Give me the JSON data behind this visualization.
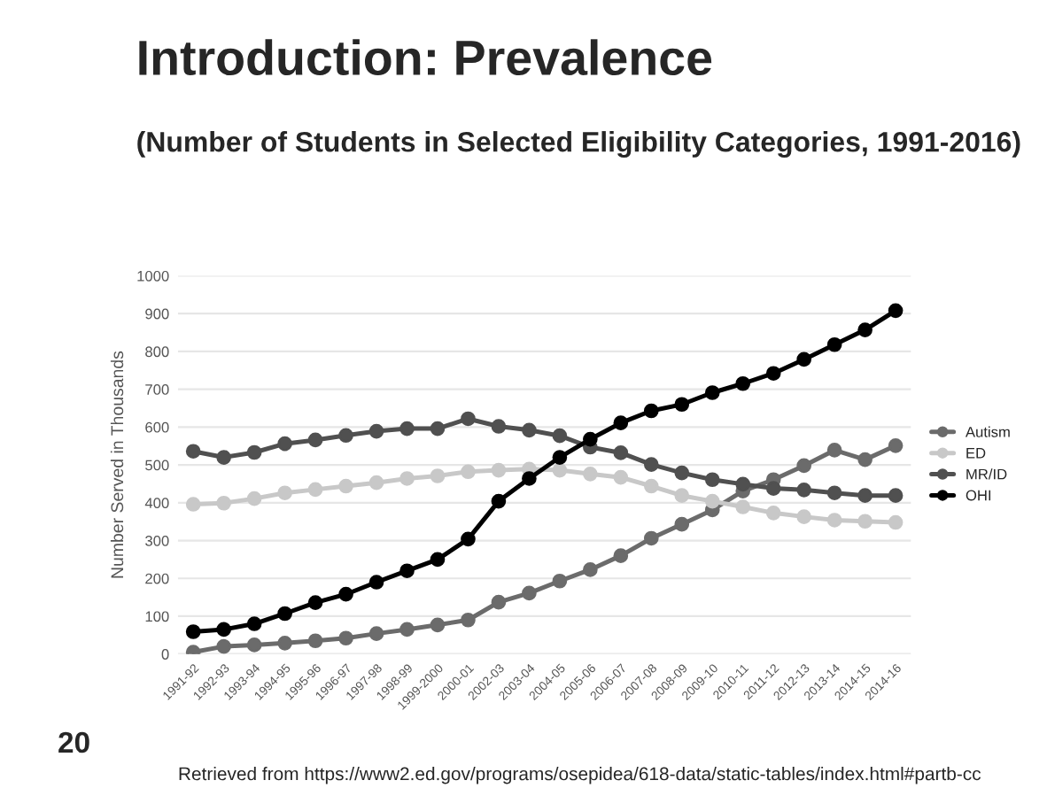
{
  "chart_data": {
    "type": "line",
    "title": "Introduction: Prevalence",
    "subtitle": "(Number of Students in Selected Eligibility Categories, 1991-2016)",
    "ylabel": "Number Served in Thousands",
    "annotations": [
      "20",
      "Retrieved from https://www2.ed.gov/programs/osepidea/618-data/static-tables/index.html#partb-cc"
    ],
    "categories": [
      "1991-92",
      "1992-93",
      "1993-94",
      "1994-95",
      "1995-96",
      "1996-97",
      "1997-98",
      "1998-99",
      "1999-2000",
      "2000-01",
      "2002-03",
      "2003-04",
      "2004-05",
      "2005-06",
      "2006-07",
      "2007-08",
      "2008-09",
      "2009-10",
      "2010-11",
      "2011-12",
      "2012-13",
      "2013-14",
      "2014-15",
      "2014-16"
    ],
    "series": [
      {
        "name": "Autism",
        "color": "#6b6b6b",
        "values": [
          5,
          20,
          24,
          29,
          35,
          42,
          54,
          65,
          77,
          90,
          137,
          161,
          193,
          223,
          260,
          306,
          343,
          381,
          431,
          461,
          498,
          539,
          514,
          551
        ]
      },
      {
        "name": "ED",
        "color": "#c8c8c8",
        "values": [
          396,
          399,
          411,
          426,
          435,
          444,
          453,
          464,
          471,
          482,
          486,
          489,
          486,
          476,
          467,
          444,
          419,
          404,
          389,
          373,
          363,
          354,
          351,
          348
        ]
      },
      {
        "name": "MR/ID",
        "color": "#505050",
        "values": [
          536,
          520,
          533,
          556,
          566,
          578,
          589,
          596,
          596,
          622,
          602,
          592,
          577,
          547,
          532,
          501,
          479,
          461,
          449,
          438,
          434,
          426,
          419,
          419
        ]
      },
      {
        "name": "OHI",
        "color": "#000000",
        "values": [
          59,
          65,
          80,
          107,
          136,
          158,
          190,
          220,
          250,
          304,
          404,
          464,
          520,
          568,
          611,
          643,
          660,
          691,
          715,
          742,
          779,
          818,
          857,
          908
        ]
      }
    ],
    "ylim": [
      0,
      1000
    ],
    "yticks": [
      0,
      100,
      200,
      300,
      400,
      500,
      600,
      700,
      800,
      900,
      1000
    ],
    "grid": "y",
    "legend": "right",
    "marker": "circle",
    "line_style": "solid"
  }
}
